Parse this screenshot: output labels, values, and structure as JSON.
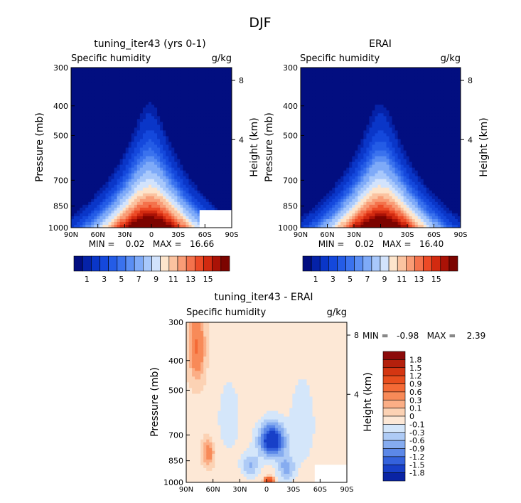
{
  "page_title": "DJF",
  "chart_data": [
    {
      "type": "heatmap",
      "title": "tuning_iter43 (yrs 0-1)",
      "variable": "Specific humidity",
      "units": "g/kg",
      "xlabel": "",
      "ylabel": "Pressure (mb)",
      "right_label": "Height (km)",
      "x_ticks": [
        "90N",
        "60N",
        "30N",
        "0",
        "30S",
        "60S",
        "90S"
      ],
      "y_ticks": [
        "300",
        "400",
        "500",
        "700",
        "850",
        "1000"
      ],
      "height_ticks": [
        "8",
        "4"
      ],
      "stats": "MIN =    0.02   MAX =   16.66",
      "min": 0.02,
      "max": 16.66,
      "colorbar": {
        "labels": [
          "1",
          "3",
          "5",
          "7",
          "9",
          "11",
          "13",
          "15"
        ],
        "colors": [
          "#020e80",
          "#0522a8",
          "#0a36c8",
          "#1448dc",
          "#245ce6",
          "#3a72ee",
          "#5a8ef4",
          "#7eaaf8",
          "#a8c8fb",
          "#d2e3fc",
          "#fde5cc",
          "#fbc3a0",
          "#f99c76",
          "#f4724c",
          "#ec4a26",
          "#d22a10",
          "#aa1206",
          "#7c0400"
        ]
      }
    },
    {
      "type": "heatmap",
      "title": "ERAI",
      "variable": "Specific humidity",
      "units": "g/kg",
      "xlabel": "",
      "ylabel": "Pressure (mb)",
      "right_label": "Height (km)",
      "x_ticks": [
        "90N",
        "60N",
        "30N",
        "0",
        "30S",
        "60S",
        "90S"
      ],
      "y_ticks": [
        "300",
        "400",
        "500",
        "700",
        "850",
        "1000"
      ],
      "height_ticks": [
        "8",
        "4"
      ],
      "stats": "MIN =    0.02   MAX =   16.40",
      "min": 0.02,
      "max": 16.4,
      "colorbar": {
        "labels": [
          "1",
          "3",
          "5",
          "7",
          "9",
          "11",
          "13",
          "15"
        ],
        "colors": [
          "#020e80",
          "#0522a8",
          "#0a36c8",
          "#1448dc",
          "#245ce6",
          "#3a72ee",
          "#5a8ef4",
          "#7eaaf8",
          "#a8c8fb",
          "#d2e3fc",
          "#fde5cc",
          "#fbc3a0",
          "#f99c76",
          "#f4724c",
          "#ec4a26",
          "#d22a10",
          "#aa1206",
          "#7c0400"
        ]
      }
    },
    {
      "type": "heatmap",
      "title": "tuning_iter43 - ERAI",
      "variable": "Specific humidity",
      "units": "g/kg",
      "xlabel": "",
      "ylabel": "Pressure (mb)",
      "right_label": "Height (km)",
      "x_ticks": [
        "90N",
        "60N",
        "30N",
        "0",
        "30S",
        "60S",
        "90S"
      ],
      "y_ticks": [
        "300",
        "400",
        "500",
        "700",
        "850",
        "1000"
      ],
      "height_ticks": [
        "8",
        "4"
      ],
      "stats": "MIN =   -0.98   MAX =    2.39",
      "min": -0.98,
      "max": 2.39,
      "colorbar": {
        "labels": [
          "1.8",
          "1.5",
          "1.2",
          "0.9",
          "0.6",
          "0.3",
          "0.1",
          "0",
          "-0.1",
          "-0.3",
          "-0.6",
          "-0.9",
          "-1.2",
          "-1.5",
          "-1.8"
        ],
        "colors": [
          "#8c0a0a",
          "#b4200c",
          "#d43612",
          "#e84e1e",
          "#f46a36",
          "#f88a58",
          "#fbae86",
          "#fcd2b4",
          "#fde8d6",
          "#d4e6fa",
          "#aecbf6",
          "#86acf0",
          "#5c88e8",
          "#3462dc",
          "#1840c8",
          "#0a24a4"
        ]
      }
    }
  ]
}
